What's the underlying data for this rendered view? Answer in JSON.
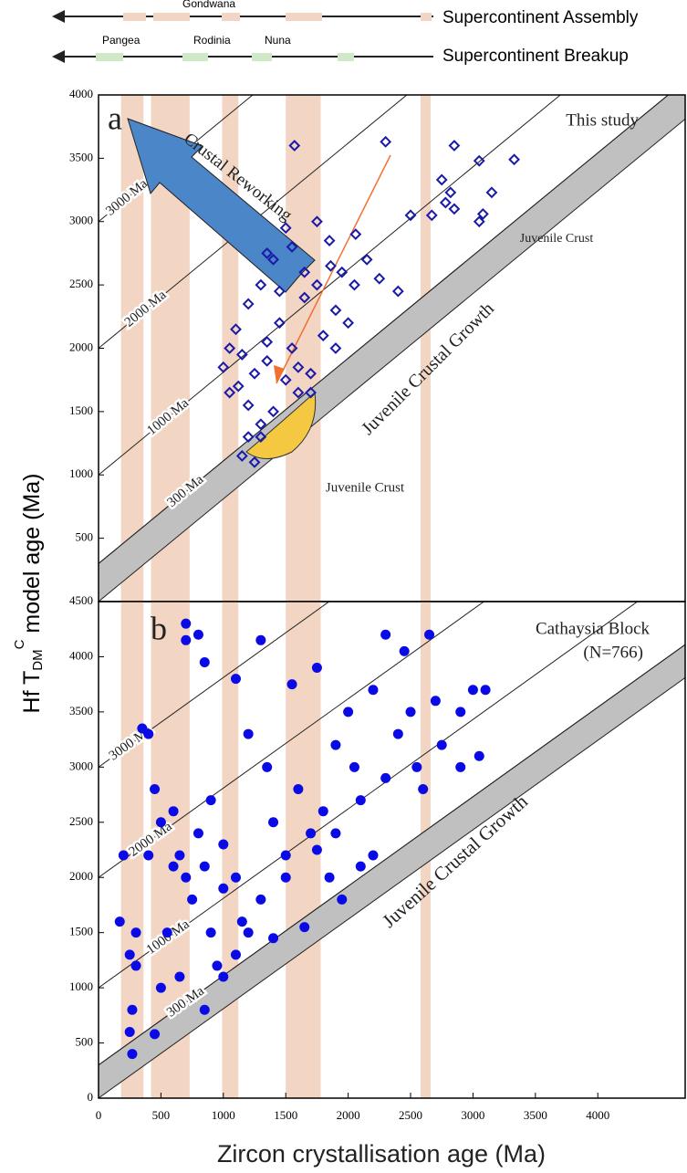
{
  "timeline": {
    "rows": [
      "Supercontinent Assembly",
      "Supercontinent Breakup"
    ],
    "labels": [
      "Gondwana",
      "Pangea",
      "Rodinia",
      "Nuna"
    ]
  },
  "axis_label": {
    "y": [
      "Hf T",
      "DM",
      "C",
      " model age (Ma)"
    ],
    "x": "Zircon crystallisation age (Ma)"
  },
  "chart_data": [
    {
      "type": "scatter",
      "marker": "diamond",
      "color": "#1a1aa8",
      "annotations": [
        "a",
        "This study",
        "Crustal Reworking",
        "Juvenile Crust",
        "Juvenile Crust",
        "Juvenile Crustal Growth"
      ],
      "xlim": [
        0,
        4700
      ],
      "ylim": [
        0,
        4000
      ],
      "yticks": [
        500,
        1000,
        1500,
        2000,
        2500,
        3000,
        3500,
        4000
      ],
      "bands": [
        [
          180,
          360
        ],
        [
          420,
          730
        ],
        [
          990,
          1120
        ],
        [
          1500,
          1780
        ],
        [
          2580,
          2660
        ]
      ],
      "band_color": "#f2d5c2",
      "juvenile_band": [
        [
          0,
          0
        ],
        [
          4700,
          3810
        ]
      ],
      "band_fill": "#c0c0c0",
      "ref_lines": [
        {
          "label": "300 Ma",
          "points": [
            [
              0,
              300
            ],
            [
              4700,
              4110
            ]
          ]
        },
        {
          "label": "1000 Ma",
          "points": [
            [
              0,
              1000
            ],
            [
              3700,
              4000
            ]
          ]
        },
        {
          "label": "2000 Ma",
          "points": [
            [
              0,
              2000
            ],
            [
              2470,
              4000
            ]
          ]
        },
        {
          "label": "3000 Ma",
          "points": [
            [
              0,
              3000
            ],
            [
              1235,
              4000
            ]
          ]
        }
      ],
      "x": [
        1570,
        2300,
        2850,
        3050,
        3330,
        2750,
        2820,
        2780,
        2850,
        3150,
        3080,
        2500,
        2670,
        3050,
        2060,
        1860,
        1500,
        1350,
        1300,
        1200,
        1100,
        1050,
        1000,
        1120,
        1200,
        1300,
        1200,
        1150,
        1250,
        1400,
        1600,
        1700,
        1550,
        1450,
        1650,
        1750,
        1900,
        1800,
        1900,
        2000,
        1950,
        2150,
        2400,
        2250,
        1350,
        1250,
        1500,
        1650,
        1550,
        1750,
        1850,
        1450,
        1350,
        1150,
        1050,
        1300,
        1600,
        1700,
        2050,
        1400
      ],
      "values": [
        3600,
        3630,
        3600,
        3480,
        3490,
        3330,
        3230,
        3150,
        3100,
        3230,
        3060,
        3050,
        3050,
        3000,
        2900,
        2650,
        2950,
        2750,
        2500,
        2350,
        2150,
        2000,
        1850,
        1700,
        1550,
        1400,
        1300,
        1150,
        1100,
        1500,
        1650,
        1800,
        2000,
        2200,
        2400,
        2500,
        2300,
        2100,
        2000,
        2200,
        2600,
        2700,
        2450,
        2550,
        1900,
        1800,
        1750,
        2600,
        2800,
        3000,
        2850,
        2450,
        2050,
        1950,
        1650,
        1300,
        1850,
        1650,
        2500,
        2700
      ]
    },
    {
      "type": "scatter",
      "marker": "circle",
      "color": "#0a0ae6",
      "annotations": [
        "b",
        "Cathaysia Block",
        "(N=766)",
        "Juvenile Crustal Growth"
      ],
      "xlim": [
        0,
        4700
      ],
      "ylim": [
        0,
        4500
      ],
      "yticks": [
        0,
        500,
        1000,
        1500,
        2000,
        2500,
        3000,
        3500,
        4000,
        4500
      ],
      "xticks": [
        0,
        500,
        1000,
        1500,
        2000,
        2500,
        3000,
        3500,
        4000
      ],
      "bands": [
        [
          180,
          360
        ],
        [
          420,
          730
        ],
        [
          990,
          1120
        ],
        [
          1500,
          1780
        ],
        [
          2580,
          2660
        ]
      ],
      "band_color": "#f2d5c2",
      "juvenile_band": [
        [
          0,
          0
        ],
        [
          4700,
          3810
        ]
      ],
      "band_fill": "#c0c0c0",
      "ref_lines": [
        {
          "label": "300 Ma",
          "points": [
            [
              0,
              300
            ],
            [
              4700,
              4110
            ]
          ]
        },
        {
          "label": "1000 Ma",
          "points": [
            [
              0,
              1000
            ],
            [
              4700,
              4810
            ]
          ]
        },
        {
          "label": "2000 Ma",
          "points": [
            [
              0,
              2000
            ],
            [
              3100,
              4510
            ]
          ]
        },
        {
          "label": "3000 Ma",
          "points": [
            [
              0,
              3000
            ],
            [
              1860,
              4510
            ]
          ]
        }
      ],
      "x": [
        170,
        250,
        300,
        270,
        270,
        250,
        350,
        400,
        450,
        500,
        400,
        600,
        650,
        700,
        750,
        800,
        850,
        900,
        950,
        1000,
        900,
        1000,
        1100,
        1150,
        850,
        700,
        700,
        800,
        850,
        1100,
        1300,
        1200,
        1350,
        1400,
        1500,
        1550,
        1600,
        1700,
        1800,
        1750,
        1850,
        1900,
        2000,
        2050,
        2100,
        2200,
        2300,
        2400,
        2450,
        2500,
        2550,
        2600,
        2650,
        2700,
        2750,
        2900,
        3000,
        3100,
        3050,
        2900,
        2200,
        2100,
        1950,
        1500,
        1300,
        1200,
        1650,
        1400,
        1750,
        600,
        550,
        650,
        500,
        450,
        1000,
        1100,
        200,
        300,
        1900,
        2300
      ],
      "values": [
        1600,
        1300,
        1200,
        800,
        400,
        600,
        3350,
        3300,
        2800,
        2500,
        2200,
        2600,
        2200,
        2000,
        1800,
        2400,
        2100,
        1500,
        1200,
        2300,
        2700,
        1900,
        2000,
        1600,
        800,
        4300,
        4150,
        4200,
        3950,
        3800,
        4150,
        3300,
        3000,
        2500,
        2200,
        3750,
        2800,
        2400,
        2600,
        3900,
        2000,
        3200,
        3500,
        3000,
        2700,
        3700,
        4200,
        3300,
        4050,
        3500,
        3000,
        2800,
        4200,
        3600,
        3200,
        3500,
        3700,
        3700,
        3100,
        3000,
        2200,
        2100,
        1800,
        2000,
        1800,
        1500,
        1550,
        1450,
        2250,
        2100,
        1500,
        1100,
        1000,
        580,
        1100,
        1300,
        2200,
        1500,
        2400,
        2900
      ]
    }
  ]
}
